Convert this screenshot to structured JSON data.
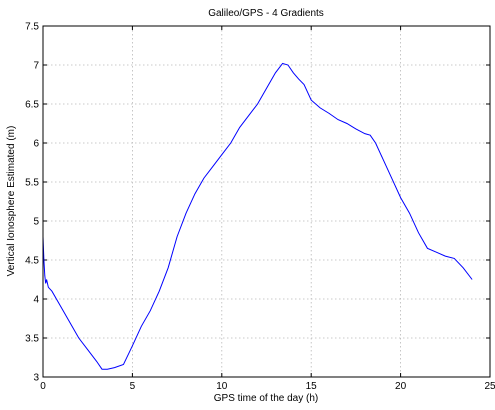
{
  "chart_data": {
    "type": "line",
    "title": "Galileo/GPS - 4 Gradients",
    "xlabel": "GPS time of the day (h)",
    "ylabel": "Vertical Ionosphere Estimated (m)",
    "xlim": [
      0,
      25
    ],
    "ylim": [
      3,
      7.5
    ],
    "xticks": [
      0,
      5,
      10,
      15,
      20,
      25
    ],
    "yticks": [
      3,
      3.5,
      4,
      4.5,
      5,
      5.5,
      6,
      6.5,
      7,
      7.5
    ],
    "xtick_labels": [
      "0",
      "5",
      "10",
      "15",
      "20",
      "25"
    ],
    "ytick_labels": [
      "3",
      "3.5",
      "4",
      "4.5",
      "5",
      "5.5",
      "6",
      "6.5",
      "7",
      "7.5"
    ],
    "grid": true,
    "line_color": "#0000ff",
    "series": [
      {
        "x": [
          0.0,
          0.05,
          0.1,
          0.15,
          0.2,
          0.3,
          0.5,
          1.0,
          1.5,
          2.0,
          2.5,
          3.0,
          3.3,
          3.6,
          4.0,
          4.5,
          5.0,
          5.5,
          6.0,
          6.5,
          7.0,
          7.5,
          8.0,
          8.5,
          9.0,
          9.5,
          10.0,
          10.5,
          11.0,
          11.5,
          12.0,
          12.5,
          13.0,
          13.4,
          13.7,
          14.0,
          14.3,
          14.6,
          15.0,
          15.5,
          16.0,
          16.5,
          17.0,
          17.5,
          18.0,
          18.3,
          18.6,
          19.0,
          19.5,
          20.0,
          20.5,
          21.0,
          21.5,
          22.0,
          22.5,
          23.0,
          23.5,
          24.0
        ],
        "y": [
          4.8,
          4.5,
          4.3,
          4.2,
          4.25,
          4.15,
          4.1,
          3.9,
          3.7,
          3.5,
          3.35,
          3.2,
          3.1,
          3.1,
          3.12,
          3.16,
          3.4,
          3.65,
          3.85,
          4.1,
          4.4,
          4.8,
          5.1,
          5.35,
          5.55,
          5.7,
          5.85,
          6.0,
          6.2,
          6.35,
          6.5,
          6.7,
          6.9,
          7.02,
          7.0,
          6.9,
          6.82,
          6.75,
          6.55,
          6.45,
          6.38,
          6.3,
          6.25,
          6.18,
          6.12,
          6.1,
          6.0,
          5.8,
          5.55,
          5.3,
          5.1,
          4.85,
          4.65,
          4.6,
          4.55,
          4.52,
          4.4,
          4.25
        ]
      }
    ]
  }
}
